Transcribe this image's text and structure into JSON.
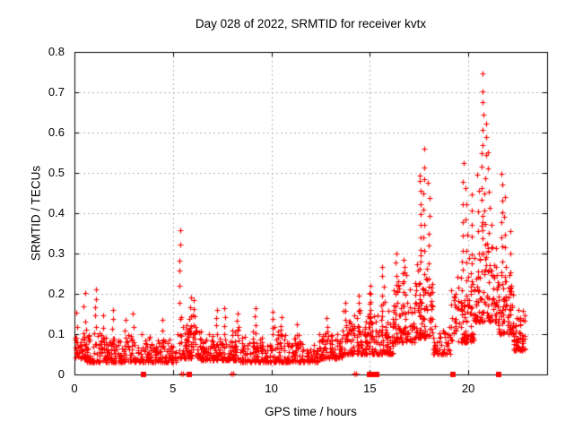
{
  "chart_data": {
    "type": "scatter",
    "title": "Day 028 of 2022, SRMTID for receiver kvtx",
    "xlabel": "GPS time / hours",
    "ylabel": "SRMTID / TECUs",
    "xlim": [
      0,
      24
    ],
    "ylim": [
      0,
      0.8
    ],
    "xticks": [
      0,
      5,
      10,
      15,
      20
    ],
    "yticks": [
      0,
      0.1,
      0.2,
      0.3,
      0.4,
      0.5,
      0.6,
      0.7,
      0.8
    ],
    "grid": true,
    "legend": "none",
    "marker": "plus",
    "marker_color": "#ff0000",
    "grid_color": "#b0b0b0",
    "axis_color": "#000000",
    "background": "#ffffff",
    "seed": 20220128,
    "band_segments": [
      [
        0.0,
        0.6,
        45,
        0.04,
        0.13,
        2.0
      ],
      [
        0.6,
        1.4,
        55,
        0.03,
        0.14,
        2.0
      ],
      [
        1.4,
        3.2,
        130,
        0.03,
        0.115,
        2.0
      ],
      [
        3.2,
        5.2,
        140,
        0.03,
        0.105,
        2.0
      ],
      [
        5.2,
        6.4,
        90,
        0.04,
        0.155,
        2.0
      ],
      [
        6.4,
        8.4,
        150,
        0.035,
        0.125,
        2.0
      ],
      [
        8.4,
        10.8,
        170,
        0.03,
        0.12,
        2.0
      ],
      [
        10.8,
        12.4,
        115,
        0.03,
        0.1,
        2.0
      ],
      [
        12.4,
        13.6,
        90,
        0.04,
        0.125,
        1.8
      ],
      [
        13.6,
        14.8,
        95,
        0.05,
        0.165,
        1.8
      ],
      [
        14.8,
        15.4,
        50,
        0.05,
        0.21,
        1.8
      ],
      [
        15.4,
        16.2,
        65,
        0.05,
        0.2,
        1.8
      ],
      [
        16.2,
        17.3,
        95,
        0.08,
        0.27,
        1.8
      ],
      [
        17.3,
        18.2,
        85,
        0.09,
        0.33,
        1.8
      ],
      [
        18.2,
        19.1,
        55,
        0.05,
        0.145,
        2.0
      ],
      [
        19.1,
        20.3,
        95,
        0.08,
        0.3,
        1.7
      ],
      [
        20.3,
        21.5,
        105,
        0.13,
        0.4,
        1.7
      ],
      [
        21.5,
        22.3,
        75,
        0.1,
        0.3,
        1.8
      ],
      [
        22.3,
        22.9,
        75,
        0.06,
        0.175,
        1.8
      ]
    ],
    "spike_columns": [
      [
        0.1,
        3,
        0.08,
        0.155
      ],
      [
        0.5,
        4,
        0.1,
        0.2
      ],
      [
        1.05,
        6,
        0.1,
        0.21
      ],
      [
        1.5,
        3,
        0.09,
        0.145
      ],
      [
        1.95,
        4,
        0.09,
        0.16
      ],
      [
        2.6,
        3,
        0.08,
        0.135
      ],
      [
        3.0,
        3,
        0.08,
        0.15
      ],
      [
        4.45,
        3,
        0.08,
        0.135
      ],
      [
        5.35,
        8,
        0.1,
        0.365
      ],
      [
        5.9,
        5,
        0.1,
        0.19
      ],
      [
        6.05,
        5,
        0.1,
        0.185
      ],
      [
        7.2,
        4,
        0.1,
        0.16
      ],
      [
        7.6,
        4,
        0.1,
        0.165
      ],
      [
        8.3,
        4,
        0.1,
        0.15
      ],
      [
        9.2,
        4,
        0.1,
        0.165
      ],
      [
        10.1,
        4,
        0.1,
        0.155
      ],
      [
        10.5,
        3,
        0.1,
        0.14
      ],
      [
        11.3,
        3,
        0.07,
        0.125
      ],
      [
        12.8,
        4,
        0.08,
        0.14
      ],
      [
        13.8,
        5,
        0.1,
        0.175
      ],
      [
        14.4,
        5,
        0.12,
        0.195
      ],
      [
        15.0,
        6,
        0.12,
        0.22
      ],
      [
        15.65,
        8,
        0.1,
        0.265
      ],
      [
        16.35,
        8,
        0.12,
        0.3
      ],
      [
        16.7,
        6,
        0.15,
        0.28
      ],
      [
        17.55,
        14,
        0.15,
        0.5
      ],
      [
        17.75,
        12,
        0.15,
        0.55
      ],
      [
        18.0,
        8,
        0.2,
        0.47
      ],
      [
        19.7,
        10,
        0.12,
        0.52
      ],
      [
        19.9,
        9,
        0.15,
        0.47
      ],
      [
        20.15,
        8,
        0.2,
        0.44
      ],
      [
        20.5,
        6,
        0.25,
        0.5
      ],
      [
        20.7,
        14,
        0.3,
        0.745
      ],
      [
        20.85,
        10,
        0.25,
        0.62
      ],
      [
        21.05,
        8,
        0.22,
        0.55
      ],
      [
        21.7,
        9,
        0.25,
        0.5
      ],
      [
        21.85,
        7,
        0.18,
        0.44
      ],
      [
        22.1,
        6,
        0.12,
        0.35
      ]
    ],
    "zero_square_hours": [
      3.5,
      5.85,
      15.0,
      15.1,
      15.35,
      19.2,
      21.55
    ],
    "zero_plus_hours": [
      5.4,
      5.5,
      7.95,
      8.05,
      14.2,
      14.3
    ]
  }
}
